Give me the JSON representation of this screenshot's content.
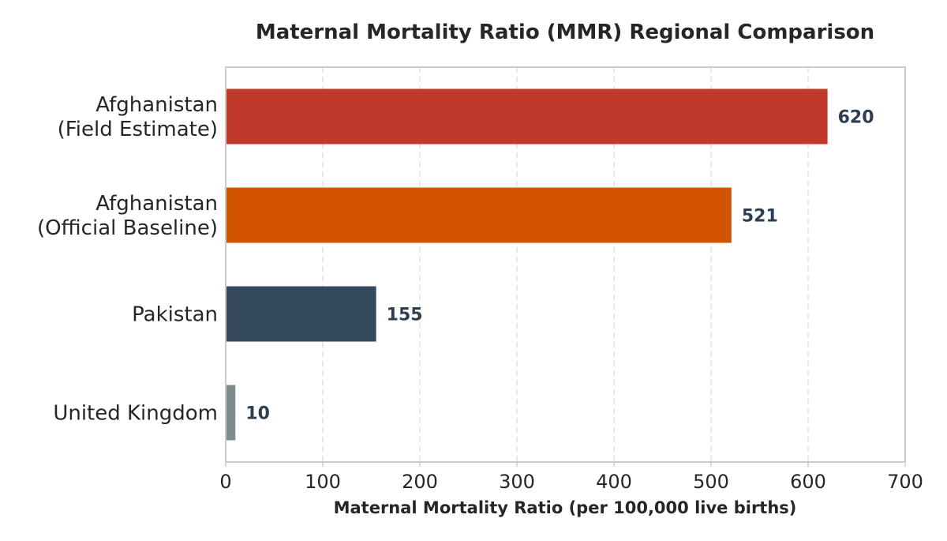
{
  "chart_data": {
    "type": "bar",
    "orientation": "horizontal",
    "title": "Maternal Mortality Ratio (MMR) Regional Comparison",
    "xlabel": "Maternal Mortality Ratio (per 100,000 live births)",
    "ylabel": "",
    "categories": [
      [
        "Afghanistan",
        "(Field Estimate)"
      ],
      [
        "Afghanistan",
        "(Official Baseline)"
      ],
      [
        "Pakistan"
      ],
      [
        "United Kingdom"
      ]
    ],
    "values": [
      620,
      521,
      155,
      10
    ],
    "value_labels": [
      "620",
      "521",
      "155",
      "10"
    ],
    "colors": [
      "#c0392b",
      "#d35400",
      "#34495e",
      "#7f8c8d"
    ],
    "xlim": [
      0,
      700
    ],
    "xticks": [
      0,
      100,
      200,
      300,
      400,
      500,
      600,
      700
    ],
    "xtick_labels": [
      "0",
      "100",
      "200",
      "300",
      "400",
      "500",
      "600",
      "700"
    ],
    "grid": "vertical dashed",
    "legend": "none"
  }
}
